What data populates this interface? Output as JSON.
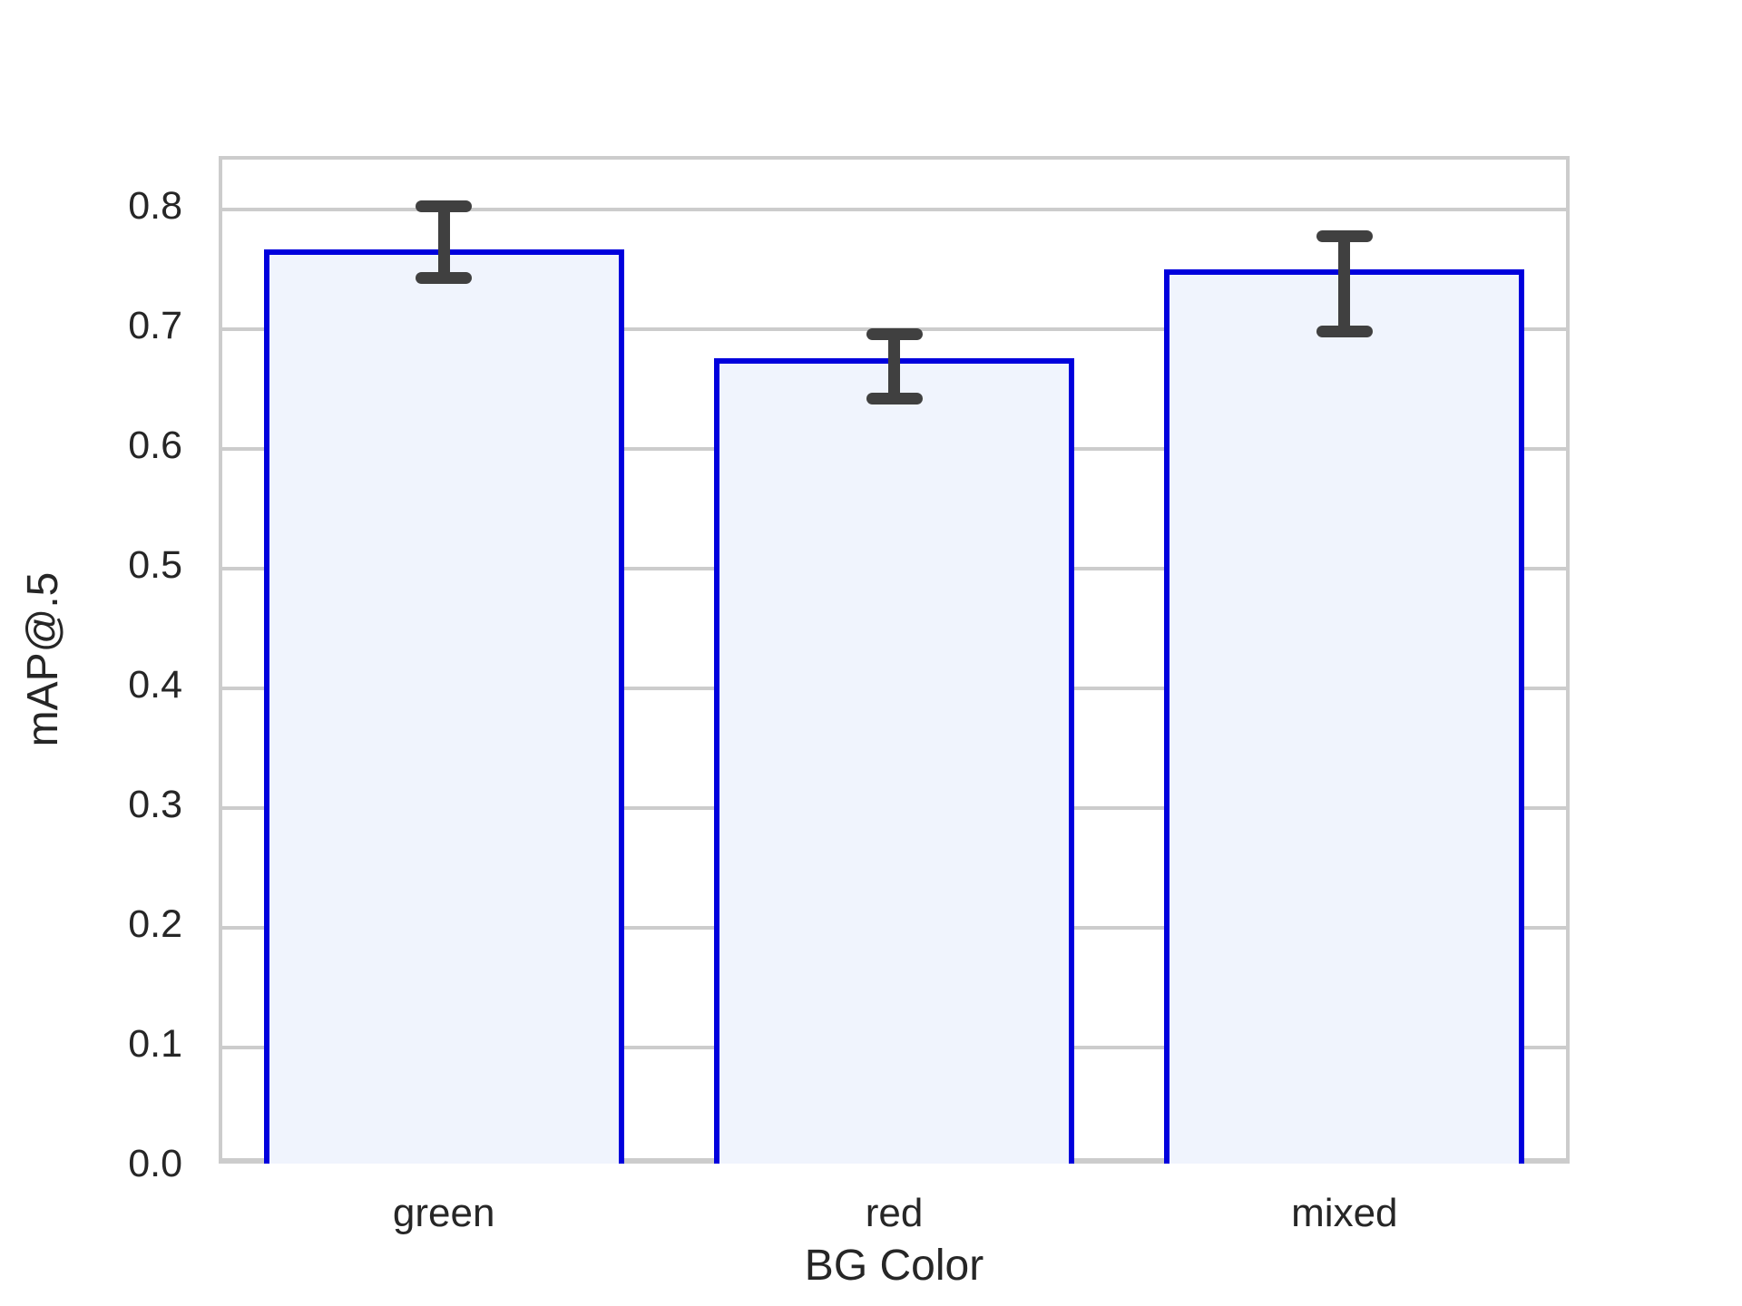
{
  "figure": {
    "background_color": "#ffffff"
  },
  "chart_data": {
    "type": "bar",
    "categories": [
      "green",
      "red",
      "mixed"
    ],
    "values": [
      0.764,
      0.673,
      0.747
    ],
    "error_low": [
      0.74,
      0.639,
      0.695
    ],
    "error_high": [
      0.8,
      0.693,
      0.775
    ],
    "title": "",
    "xlabel": "BG Color",
    "ylabel": "mAP@.5",
    "ylim": [
      0,
      0.8417
    ],
    "yticks": [
      0.0,
      0.1,
      0.2,
      0.3,
      0.4,
      0.5,
      0.6,
      0.7,
      0.8
    ],
    "grid": true,
    "legend": false,
    "bar_width_fraction": 0.8,
    "bar_fill_color": "#f0f4fd",
    "bar_edge_color": "#0000dd",
    "error_bar_color": "#404040",
    "grid_color": "#cccccc",
    "tick_label_color": "#262626"
  }
}
